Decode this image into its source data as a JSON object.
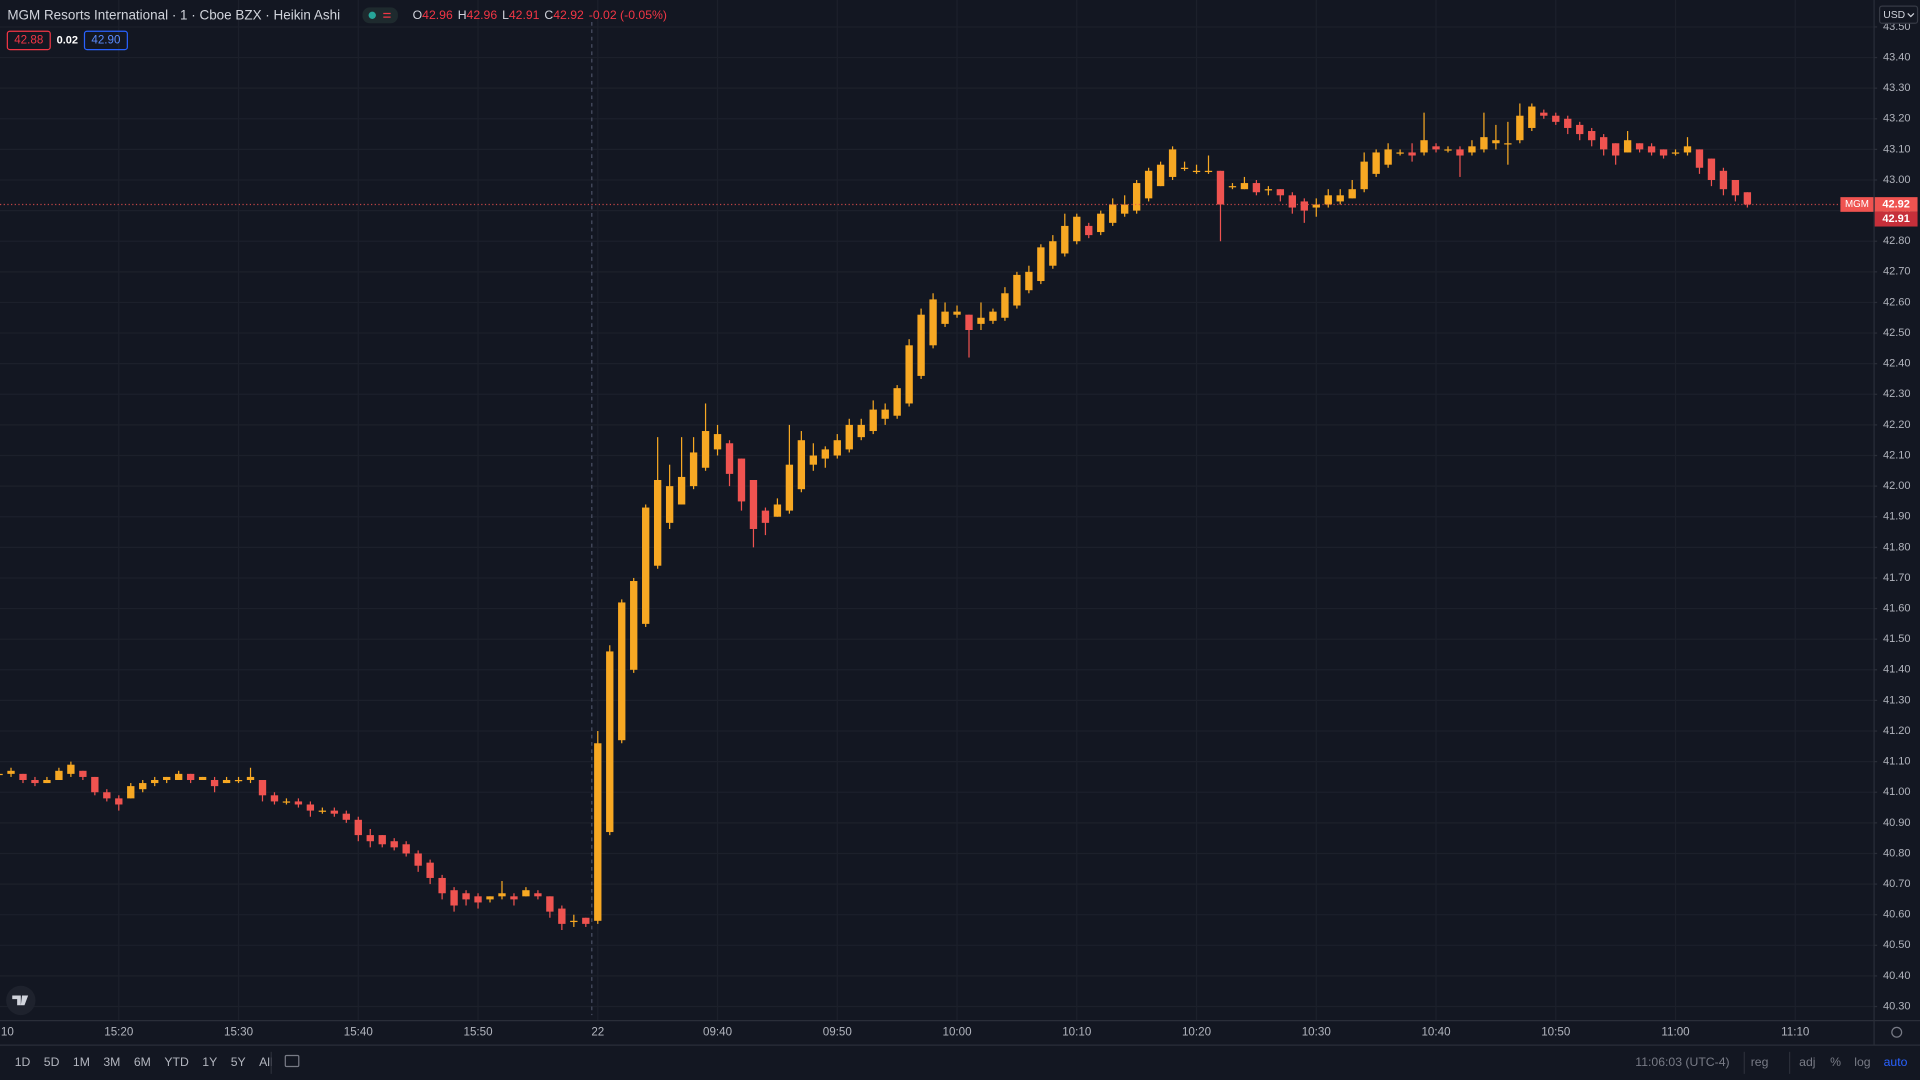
{
  "chart_data": {
    "type": "candlestick",
    "up_color": "#f7a823",
    "down_color": "#ef5350",
    "open": [
      41.06,
      41.06,
      41.06,
      41.04,
      41.03,
      41.04,
      41.06,
      41.07,
      41.05,
      41.0,
      40.98,
      40.98,
      41.01,
      41.03,
      41.04,
      41.04,
      41.06,
      41.04,
      41.04,
      41.03,
      41.04,
      41.04,
      41.04,
      40.99,
      40.97,
      40.97,
      40.96,
      40.94,
      40.94,
      40.93,
      40.91,
      40.86,
      40.86,
      40.84,
      40.83,
      40.8,
      40.77,
      40.72,
      40.68,
      40.67,
      40.66,
      40.65,
      40.66,
      40.66,
      40.66,
      40.67,
      40.66,
      40.62,
      40.58,
      40.59,
      40.58,
      40.87,
      41.17,
      41.4,
      41.55,
      41.74,
      41.88,
      41.94,
      42.0,
      42.06,
      42.12,
      42.14,
      42.09,
      42.02,
      41.92,
      41.9,
      41.92,
      41.99,
      42.07,
      42.09,
      42.1,
      42.12,
      42.16,
      42.18,
      42.22,
      42.23,
      42.27,
      42.36,
      42.46,
      42.53,
      42.56,
      42.56,
      42.53,
      42.54,
      42.55,
      42.59,
      42.64,
      42.67,
      42.72,
      42.76,
      42.8,
      42.85,
      42.83,
      42.86,
      42.89,
      42.9,
      42.94,
      42.98,
      43.01,
      43.04,
      43.03,
      43.03,
      43.03,
      42.98,
      42.97,
      42.99,
      42.97,
      42.97,
      42.95,
      42.93,
      42.91,
      42.92,
      42.93,
      42.94,
      42.97,
      43.02,
      43.05,
      43.09,
      43.09,
      43.09,
      43.11,
      43.1,
      43.1,
      43.09,
      43.1,
      43.12,
      43.12,
      43.13,
      43.17,
      43.22,
      43.21,
      43.2,
      43.18,
      43.16,
      43.14,
      43.12,
      43.09,
      43.12,
      43.11,
      43.1,
      43.09,
      43.09,
      43.1,
      43.07,
      43.03,
      43.0,
      42.96
    ],
    "high": [
      41.07,
      41.08,
      41.06,
      41.05,
      41.05,
      41.08,
      41.1,
      41.07,
      41.05,
      41.01,
      40.99,
      41.03,
      41.04,
      41.05,
      41.05,
      41.07,
      41.06,
      41.05,
      41.05,
      41.05,
      41.05,
      41.08,
      41.04,
      41.0,
      40.98,
      40.98,
      40.97,
      40.95,
      40.95,
      40.94,
      40.92,
      40.88,
      40.86,
      40.85,
      40.84,
      40.81,
      40.78,
      40.73,
      40.69,
      40.68,
      40.67,
      40.66,
      40.71,
      40.67,
      40.69,
      40.68,
      40.66,
      40.63,
      40.6,
      40.59,
      41.2,
      41.48,
      41.63,
      41.7,
      41.94,
      42.16,
      42.07,
      42.16,
      42.16,
      42.27,
      42.2,
      42.15,
      42.09,
      42.02,
      41.93,
      41.96,
      42.2,
      42.18,
      42.14,
      42.13,
      42.17,
      42.22,
      42.22,
      42.28,
      42.27,
      42.33,
      42.48,
      42.58,
      42.63,
      42.6,
      42.59,
      42.56,
      42.6,
      42.58,
      42.65,
      42.7,
      42.72,
      42.79,
      42.82,
      42.89,
      42.89,
      42.86,
      42.9,
      42.94,
      42.95,
      43.0,
      43.04,
      43.06,
      43.11,
      43.06,
      43.05,
      43.08,
      43.03,
      42.99,
      43.01,
      43.0,
      42.98,
      42.97,
      42.96,
      42.94,
      42.94,
      42.97,
      42.97,
      43.0,
      43.09,
      43.1,
      43.12,
      43.1,
      43.12,
      43.22,
      43.12,
      43.11,
      43.11,
      43.13,
      43.22,
      43.18,
      43.19,
      43.25,
      43.25,
      43.23,
      43.22,
      43.21,
      43.19,
      43.17,
      43.15,
      43.12,
      43.16,
      43.12,
      43.12,
      43.1,
      43.1,
      43.14,
      43.1,
      43.07,
      43.04,
      43.0,
      42.96
    ],
    "low": [
      41.05,
      41.05,
      41.03,
      41.02,
      41.03,
      41.04,
      41.05,
      41.04,
      40.99,
      40.97,
      40.94,
      40.98,
      41.0,
      41.02,
      41.03,
      41.04,
      41.03,
      41.04,
      41.0,
      41.03,
      41.03,
      41.03,
      40.97,
      40.96,
      40.96,
      40.95,
      40.92,
      40.93,
      40.92,
      40.9,
      40.84,
      40.82,
      40.82,
      40.81,
      40.79,
      40.74,
      40.7,
      40.65,
      40.61,
      40.63,
      40.62,
      40.64,
      40.65,
      40.63,
      40.66,
      40.65,
      40.59,
      40.55,
      40.56,
      40.56,
      40.57,
      40.86,
      41.16,
      41.39,
      41.54,
      41.73,
      41.86,
      41.94,
      41.99,
      42.05,
      42.1,
      42.0,
      41.92,
      41.8,
      41.84,
      41.9,
      41.91,
      41.98,
      42.05,
      42.06,
      42.09,
      42.11,
      42.15,
      42.17,
      42.2,
      42.22,
      42.26,
      42.35,
      42.45,
      42.52,
      42.55,
      42.42,
      42.51,
      42.53,
      42.54,
      42.58,
      42.63,
      42.66,
      42.71,
      42.75,
      42.79,
      42.81,
      42.82,
      42.85,
      42.88,
      42.89,
      42.93,
      42.98,
      43.0,
      43.03,
      43.02,
      43.02,
      42.8,
      42.97,
      42.97,
      42.95,
      42.95,
      42.93,
      42.89,
      42.86,
      42.88,
      42.91,
      42.92,
      42.94,
      42.96,
      43.01,
      43.04,
      43.08,
      43.06,
      43.08,
      43.09,
      43.09,
      43.01,
      43.08,
      43.09,
      43.1,
      43.05,
      43.12,
      43.16,
      43.2,
      43.18,
      43.15,
      43.13,
      43.11,
      43.08,
      43.05,
      43.09,
      43.09,
      43.08,
      43.07,
      43.08,
      43.08,
      43.02,
      42.98,
      42.95,
      42.93,
      42.91
    ],
    "close": [
      41.06,
      41.07,
      41.04,
      41.03,
      41.04,
      41.07,
      41.09,
      41.05,
      41.0,
      40.98,
      40.96,
      41.02,
      41.03,
      41.04,
      41.05,
      41.06,
      41.04,
      41.05,
      41.02,
      41.04,
      41.04,
      41.05,
      40.99,
      40.97,
      40.97,
      40.96,
      40.94,
      40.94,
      40.93,
      40.91,
      40.86,
      40.84,
      40.83,
      40.82,
      40.8,
      40.76,
      40.72,
      40.67,
      40.63,
      40.65,
      40.64,
      40.66,
      40.67,
      40.65,
      40.68,
      40.66,
      40.61,
      40.57,
      40.58,
      40.57,
      41.16,
      41.46,
      41.62,
      41.69,
      41.93,
      42.02,
      42.0,
      42.03,
      42.11,
      42.18,
      42.17,
      42.04,
      41.95,
      41.86,
      41.88,
      41.94,
      42.07,
      42.15,
      42.1,
      42.12,
      42.15,
      42.2,
      42.2,
      42.25,
      42.25,
      42.32,
      42.46,
      42.56,
      42.61,
      42.57,
      42.57,
      42.51,
      42.55,
      42.57,
      42.63,
      42.69,
      42.7,
      42.78,
      42.8,
      42.85,
      42.88,
      42.82,
      42.89,
      42.92,
      42.92,
      42.99,
      43.03,
      43.05,
      43.1,
      43.04,
      43.03,
      43.03,
      42.92,
      42.98,
      42.99,
      42.96,
      42.97,
      42.95,
      42.91,
      42.9,
      42.92,
      42.95,
      42.95,
      42.97,
      43.06,
      43.09,
      43.1,
      43.09,
      43.08,
      43.13,
      43.1,
      43.1,
      43.08,
      43.11,
      43.14,
      43.13,
      43.12,
      43.21,
      43.24,
      43.21,
      43.19,
      43.17,
      43.15,
      43.13,
      43.1,
      43.08,
      43.13,
      43.1,
      43.09,
      43.08,
      43.09,
      43.11,
      43.04,
      43.0,
      42.97,
      42.95,
      42.92
    ],
    "xlim": [
      0.08,
      156.53
    ],
    "xticks": [
      {
        "value": 0,
        "label": "10"
      },
      {
        "value": 10,
        "label": "15:20"
      },
      {
        "value": 20,
        "label": "15:30"
      },
      {
        "value": 30,
        "label": "15:40"
      },
      {
        "value": 40,
        "label": "15:50"
      },
      {
        "value": 50,
        "label": "22"
      },
      {
        "value": 60,
        "label": "09:40"
      },
      {
        "value": 70,
        "label": "09:50"
      },
      {
        "value": 80,
        "label": "10:00"
      },
      {
        "value": 90,
        "label": "10:10"
      },
      {
        "value": 100,
        "label": "10:20"
      },
      {
        "value": 110,
        "label": "10:30"
      },
      {
        "value": 120,
        "label": "10:40"
      },
      {
        "value": 130,
        "label": "10:50"
      },
      {
        "value": 140,
        "label": "11:00"
      },
      {
        "value": 150,
        "label": "11:10"
      }
    ],
    "ylim": [
      40.256,
      43.588
    ],
    "yticks": [
      {
        "value": 40.3,
        "label": "40.30"
      },
      {
        "value": 40.4,
        "label": "40.40"
      },
      {
        "value": 40.5,
        "label": "40.50"
      },
      {
        "value": 40.6,
        "label": "40.60"
      },
      {
        "value": 40.7,
        "label": "40.70"
      },
      {
        "value": 40.8,
        "label": "40.80"
      },
      {
        "value": 40.9,
        "label": "40.90"
      },
      {
        "value": 41.0,
        "label": "41.00"
      },
      {
        "value": 41.1,
        "label": "41.10"
      },
      {
        "value": 41.2,
        "label": "41.20"
      },
      {
        "value": 41.3,
        "label": "41.30"
      },
      {
        "value": 41.4,
        "label": "41.40"
      },
      {
        "value": 41.5,
        "label": "41.50"
      },
      {
        "value": 41.6,
        "label": "41.60"
      },
      {
        "value": 41.7,
        "label": "41.70"
      },
      {
        "value": 41.8,
        "label": "41.80"
      },
      {
        "value": 41.9,
        "label": "41.90"
      },
      {
        "value": 42.0,
        "label": "42.00"
      },
      {
        "value": 42.1,
        "label": "42.10"
      },
      {
        "value": 42.2,
        "label": "42.20"
      },
      {
        "value": 42.3,
        "label": "42.30"
      },
      {
        "value": 42.4,
        "label": "42.40"
      },
      {
        "value": 42.5,
        "label": "42.50"
      },
      {
        "value": 42.6,
        "label": "42.60"
      },
      {
        "value": 42.7,
        "label": "42.70"
      },
      {
        "value": 42.8,
        "label": "42.80"
      },
      {
        "value": 42.9,
        "label": "42.90"
      },
      {
        "value": 43.0,
        "label": "43.00"
      },
      {
        "value": 43.1,
        "label": "43.10"
      },
      {
        "value": 43.2,
        "label": "43.20"
      },
      {
        "value": 43.3,
        "label": "43.30"
      },
      {
        "value": 43.4,
        "label": "43.40"
      },
      {
        "value": 43.5,
        "label": "43.50"
      }
    ],
    "grid": true
  },
  "ui": {
    "symbol_title": "MGM Resorts International · 1 · Cboe BZX · Heikin Ashi",
    "ohlc_labels": [
      "O",
      "H",
      "L",
      "C"
    ],
    "change": "-0.02 (-0.05%)",
    "bid": "42.88",
    "spread": "0.02",
    "ask": "42.90",
    "symbol_tag": "MGM",
    "currency": "USD",
    "ranges": [
      "1D",
      "5D",
      "1M",
      "3M",
      "6M",
      "YTD",
      "1Y",
      "5Y",
      "All"
    ],
    "clock": "11:06:03 (UTC-4)",
    "toggles": [
      "reg",
      "adj",
      "%",
      "log",
      "auto"
    ]
  }
}
